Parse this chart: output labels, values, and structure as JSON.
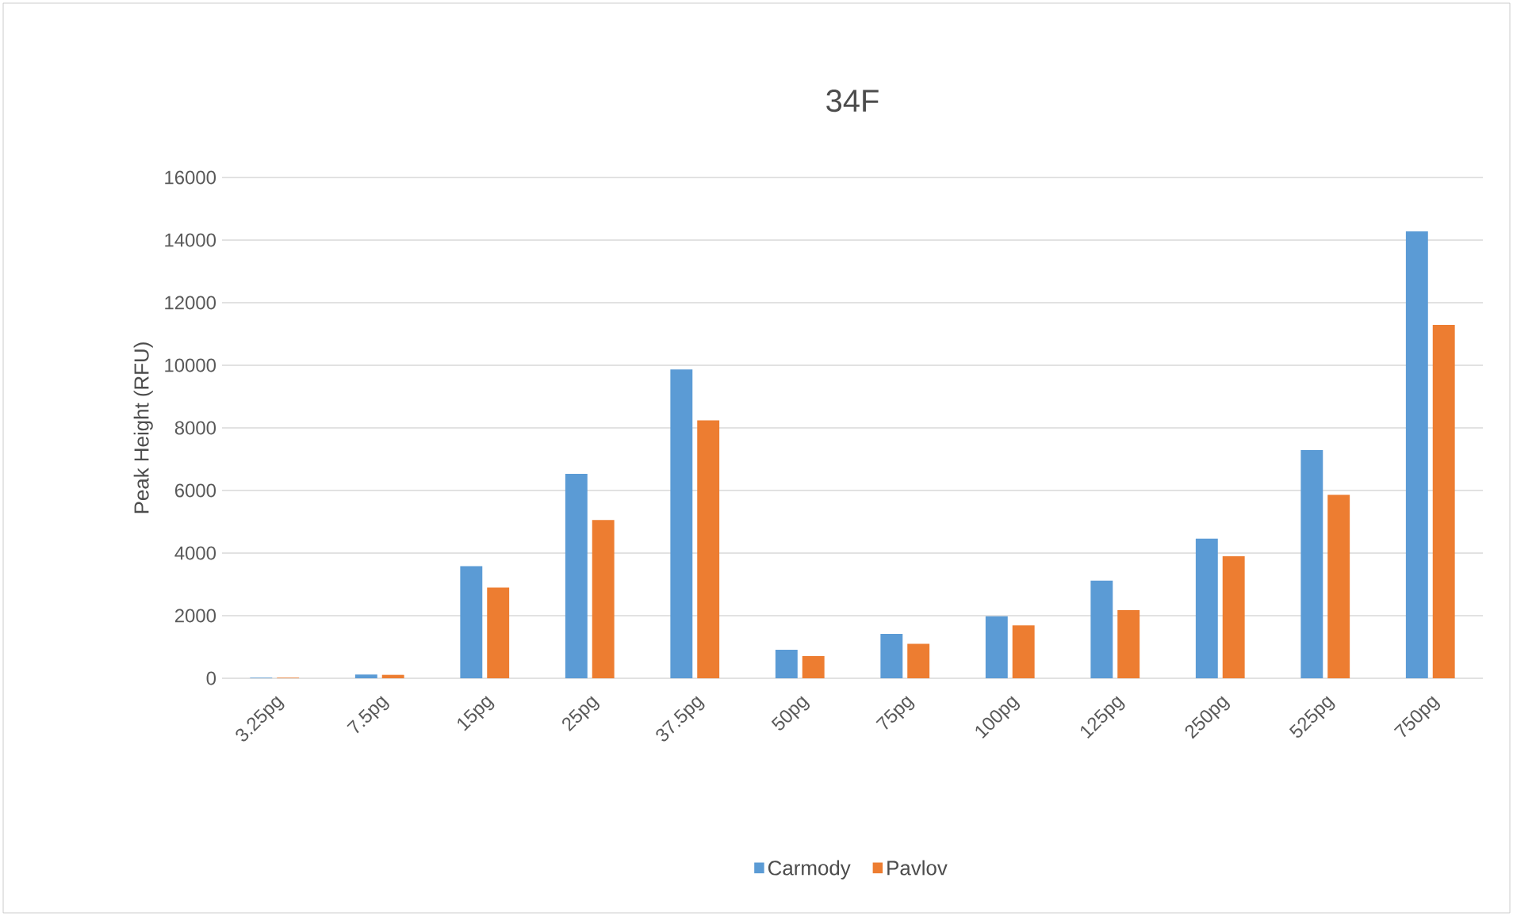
{
  "chart_data": {
    "type": "bar",
    "title": "34F",
    "ylabel": "Peak Height (RFU)",
    "categories": [
      "3.25pg",
      "7.5pg",
      "15pg",
      "25pg",
      "37.5pg",
      "50pg",
      "75pg",
      "100pg",
      "125pg",
      "250pg",
      "525pg",
      "750pg"
    ],
    "series": [
      {
        "name": "Carmody",
        "color": "#5b9bd5",
        "values": [
          20,
          120,
          3580,
          6530,
          9870,
          910,
          1420,
          1980,
          3120,
          4460,
          7290,
          14280
        ]
      },
      {
        "name": "Pavlov",
        "color": "#ed7d31",
        "values": [
          20,
          110,
          2900,
          5060,
          8240,
          710,
          1100,
          1690,
          2180,
          3900,
          5860,
          11290
        ]
      }
    ],
    "ylim": [
      0,
      16000
    ],
    "yticks": [
      0,
      2000,
      4000,
      6000,
      8000,
      10000,
      12000,
      14000,
      16000
    ],
    "grid": "y",
    "legend": "bottom"
  }
}
